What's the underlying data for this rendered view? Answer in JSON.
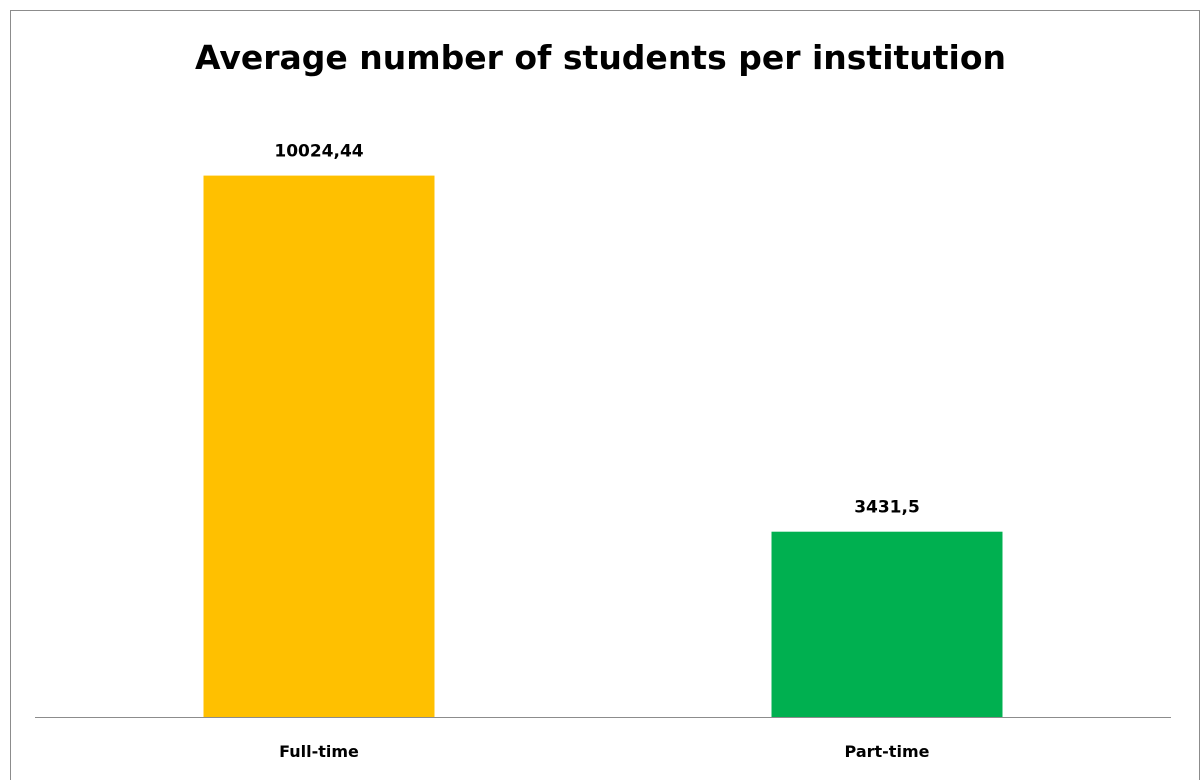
{
  "chart_data": {
    "type": "bar",
    "title": "Average number of students per institution",
    "categories": [
      "Full-time",
      "Part-time"
    ],
    "values": [
      10024.44,
      3431.5
    ],
    "data_labels": [
      "10024,44",
      "3431,5"
    ],
    "colors": [
      "#FFC000",
      "#00B050"
    ],
    "ylim": [
      0,
      11610
    ],
    "axis_color": "#8c8c8c",
    "grid": false,
    "legend": "none"
  }
}
